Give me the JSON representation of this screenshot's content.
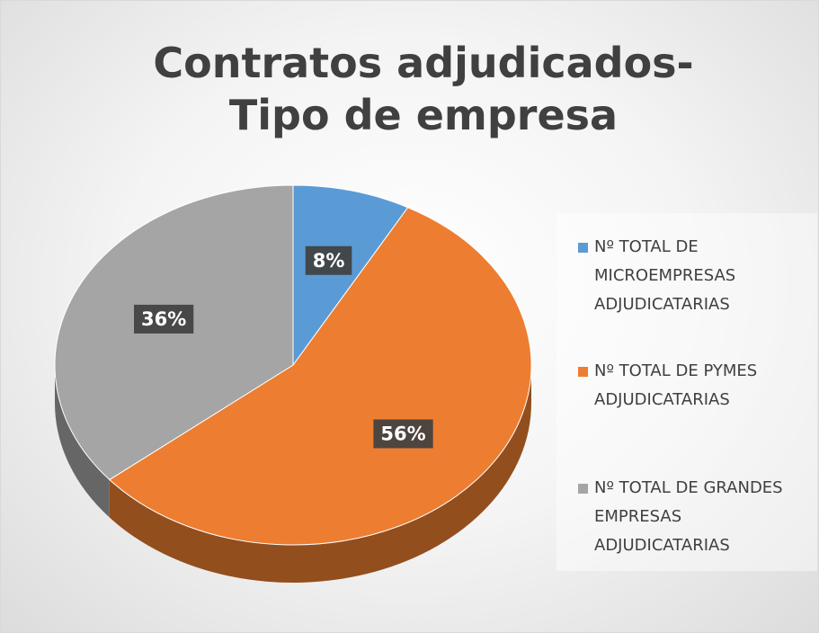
{
  "chart_data": {
    "type": "pie",
    "title": "Contratos adjudicados-Tipo de empresa",
    "categories": [
      "Nº TOTAL DE MICROEMPRESAS ADJUDICATARIAS",
      "Nº TOTAL DE PYMES ADJUDICATARIAS",
      "Nº TOTAL DE GRANDES EMPRESAS ADJUDICATARIAS"
    ],
    "values": [
      8,
      56,
      36
    ],
    "value_labels": [
      "8%",
      "56%",
      "36%"
    ],
    "colors": [
      "#5b9bd5",
      "#ed7d31",
      "#a5a5a5"
    ],
    "legend": "right"
  }
}
